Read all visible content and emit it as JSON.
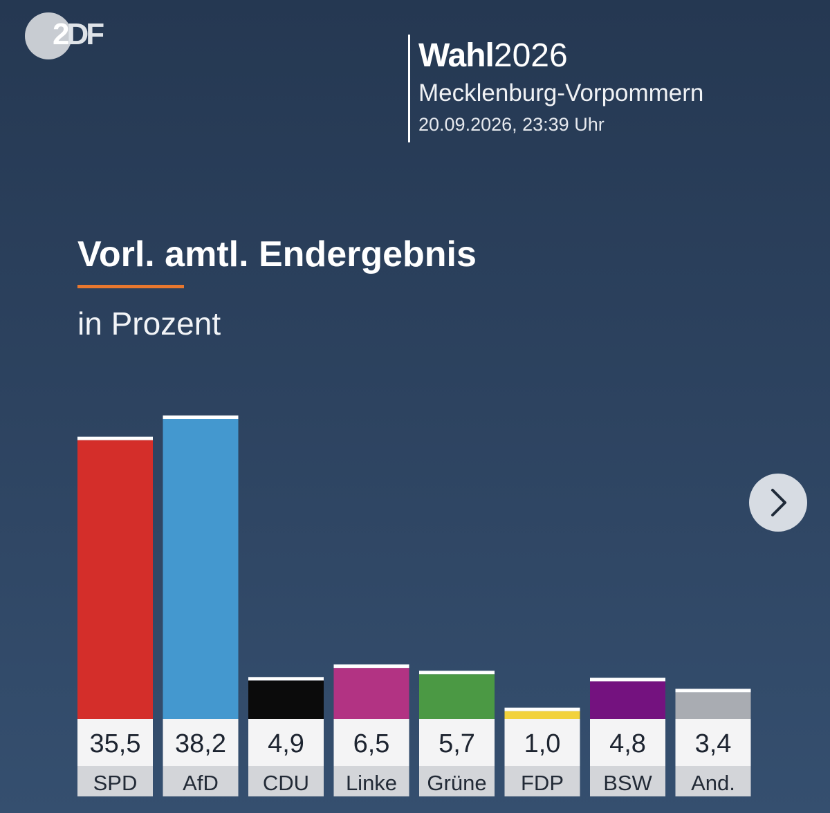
{
  "logo": {
    "part1": "2",
    "part2": "DF"
  },
  "header": {
    "brand_bold": "Wahl",
    "brand_year": "2026",
    "region": "Mecklenburg-Vorpommern",
    "timestamp": "20.09.2026, 23:39 Uhr"
  },
  "chart_title": "Vorl. amtl. Endergebnis",
  "chart_subtitle": "in Prozent",
  "next_icon": "chevron-right-icon",
  "chart_data": {
    "type": "bar",
    "title": "Vorl. amtl. Endergebnis",
    "subtitle": "in Prozent",
    "categories": [
      "SPD",
      "AfD",
      "CDU",
      "Linke",
      "Grüne",
      "FDP",
      "BSW",
      "And."
    ],
    "values": [
      35.5,
      38.2,
      4.9,
      6.5,
      5.7,
      1.0,
      4.8,
      3.4
    ],
    "value_labels": [
      "35,5",
      "38,2",
      "4,9",
      "6,5",
      "5,7",
      "1,0",
      "4,8",
      "3,4"
    ],
    "colors": [
      "#d42e2a",
      "#4498cf",
      "#0b0b0b",
      "#b23383",
      "#4b9944",
      "#f2d23c",
      "#74127f",
      "#a9acb2"
    ],
    "ylim": [
      0,
      38.2
    ],
    "grid": false,
    "legend": "none"
  }
}
